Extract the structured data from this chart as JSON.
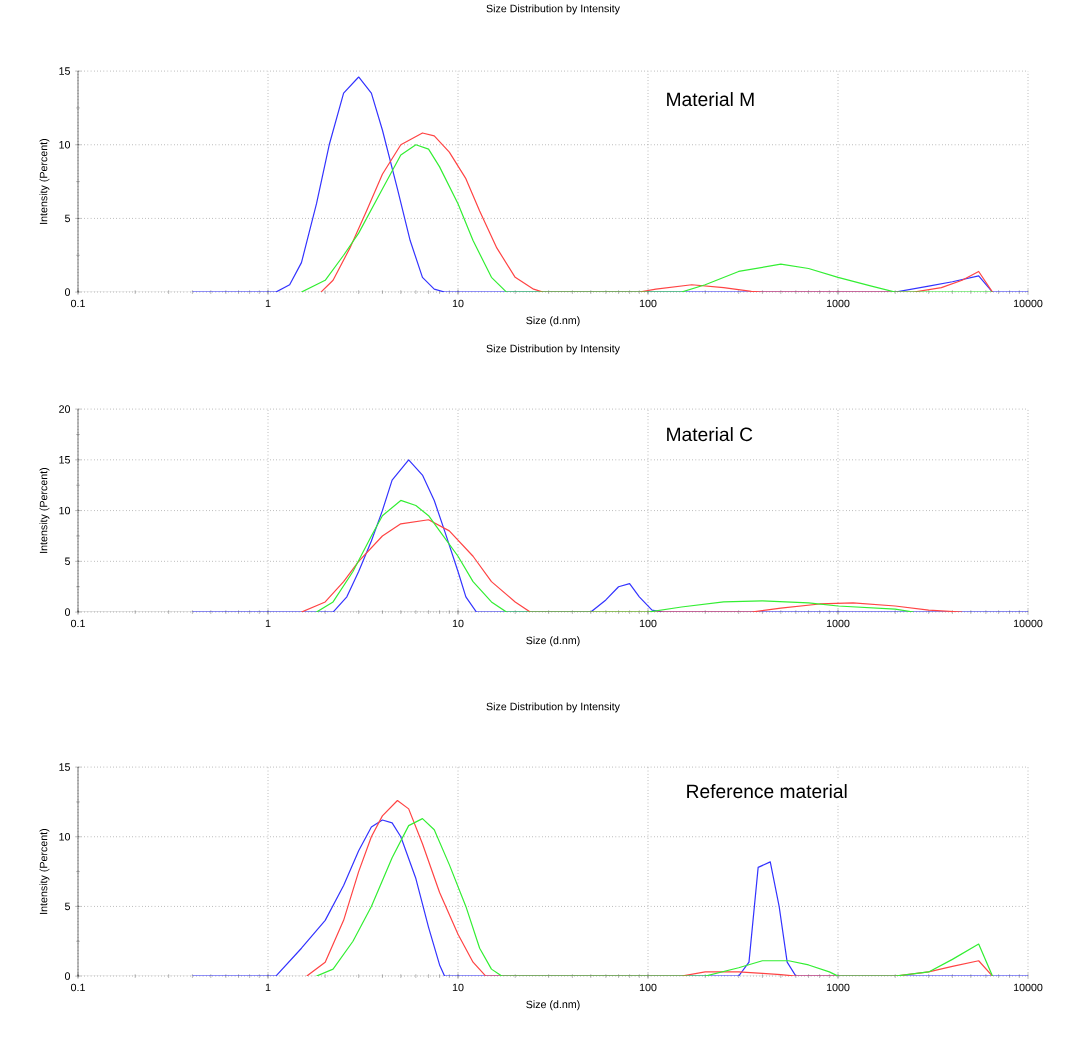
{
  "chart_data": [
    {
      "type": "line",
      "title": "Size Distribution by Intensity",
      "xlabel": "Size (d.nm)",
      "ylabel": "Intensity (Percent)",
      "annotations": [
        "Material M"
      ],
      "log": "x",
      "grid": true,
      "xlim": [
        0.1,
        10000
      ],
      "ylim": [
        0,
        15
      ],
      "xticks": [
        0.1,
        1,
        10,
        100,
        1000,
        10000
      ],
      "yticks": [
        0,
        5,
        10,
        15
      ],
      "series": [
        {
          "color": "#3333ff",
          "x": [
            0.4,
            1.1,
            1.3,
            1.5,
            1.8,
            2.1,
            2.5,
            3.0,
            3.5,
            4.0,
            4.8,
            5.6,
            6.5,
            7.5,
            8.5,
            2000,
            3000,
            4000,
            5500,
            6500,
            10000
          ],
          "values": [
            0,
            0,
            0.5,
            2,
            6,
            10,
            13.5,
            14.6,
            13.5,
            11,
            7,
            3.5,
            1,
            0.2,
            0,
            0,
            0.4,
            0.7,
            1.1,
            0,
            0
          ]
        },
        {
          "color": "#ff4444",
          "x": [
            1.9,
            2.2,
            2.7,
            3.3,
            4,
            5,
            6.5,
            7.5,
            9,
            11,
            13,
            16,
            20,
            25,
            28,
            90,
            110,
            170,
            250,
            350,
            400,
            2500,
            3500,
            4500,
            5500,
            6500
          ],
          "values": [
            0,
            0.8,
            3,
            5.5,
            8,
            10,
            10.8,
            10.6,
            9.5,
            7.7,
            5.5,
            3,
            1,
            0.2,
            0,
            0,
            0.2,
            0.5,
            0.3,
            0.05,
            0,
            0,
            0.3,
            0.8,
            1.4,
            0
          ]
        },
        {
          "color": "#33ee33",
          "x": [
            1.5,
            2,
            2.5,
            3,
            4,
            5,
            6,
            7,
            8,
            10,
            12,
            15,
            18,
            150,
            200,
            300,
            500,
            700,
            1000,
            1500,
            2000,
            6500
          ],
          "values": [
            0,
            0.8,
            2.5,
            4,
            7,
            9.3,
            10,
            9.7,
            8.5,
            6,
            3.5,
            1,
            0,
            0,
            0.5,
            1.4,
            1.9,
            1.6,
            1,
            0.4,
            0,
            0
          ]
        }
      ]
    },
    {
      "type": "line",
      "title": "Size Distribution by Intensity",
      "xlabel": "Size (d.nm)",
      "ylabel": "Intensity (Percent)",
      "annotations": [
        "Material C"
      ],
      "log": "x",
      "grid": true,
      "xlim": [
        0.1,
        10000
      ],
      "ylim": [
        0,
        20
      ],
      "xticks": [
        0.1,
        1,
        10,
        100,
        1000,
        10000
      ],
      "yticks": [
        0,
        5,
        10,
        15,
        20
      ],
      "series": [
        {
          "color": "#3333ff",
          "x": [
            0.4,
            2.2,
            2.6,
            3,
            3.5,
            4,
            4.5,
            5.5,
            6.5,
            7.5,
            8.5,
            10,
            11,
            12.5,
            50,
            60,
            70,
            80,
            90,
            105,
            120,
            10000
          ],
          "values": [
            0,
            0,
            1.5,
            4,
            7,
            10,
            13,
            15,
            13.5,
            11,
            8,
            4,
            1.5,
            0,
            0,
            1.2,
            2.5,
            2.8,
            1.5,
            0.2,
            0,
            0
          ]
        },
        {
          "color": "#ff4444",
          "x": [
            1.5,
            2,
            2.5,
            3,
            4,
            5,
            7,
            9,
            12,
            15,
            20,
            24,
            350,
            500,
            800,
            1200,
            2000,
            3000,
            4500
          ],
          "values": [
            0,
            1,
            3,
            5,
            7.5,
            8.7,
            9.1,
            8,
            5.5,
            3,
            1,
            0,
            0,
            0.4,
            0.8,
            0.9,
            0.6,
            0.2,
            0
          ]
        },
        {
          "color": "#33ee33",
          "x": [
            1.8,
            2.2,
            2.8,
            3.5,
            4,
            5,
            6,
            7,
            8,
            10,
            12,
            15,
            18,
            100,
            150,
            250,
            400,
            700,
            1000,
            2000,
            2500
          ],
          "values": [
            0,
            1,
            4,
            7.5,
            9.5,
            11,
            10.5,
            9.5,
            8,
            5.5,
            3,
            1,
            0,
            0,
            0.5,
            1,
            1.1,
            0.9,
            0.6,
            0.3,
            0
          ]
        }
      ]
    },
    {
      "type": "line",
      "title": "Size Distribution by Intensity",
      "xlabel": "Size (d.nm)",
      "ylabel": "Intensity (Percent)",
      "annotations": [
        "Reference material"
      ],
      "log": "x",
      "grid": true,
      "xlim": [
        0.1,
        10000
      ],
      "ylim": [
        0,
        15
      ],
      "xticks": [
        0.1,
        1,
        10,
        100,
        1000,
        10000
      ],
      "yticks": [
        0,
        5,
        10,
        15
      ],
      "series": [
        {
          "color": "#3333ff",
          "x": [
            0.4,
            1.1,
            1.5,
            2,
            2.5,
            3,
            3.5,
            4,
            4.5,
            5,
            6,
            7,
            8,
            8.5,
            300,
            340,
            380,
            440,
            490,
            540,
            600,
            10000
          ],
          "values": [
            0,
            0,
            2,
            4,
            6.5,
            9,
            10.7,
            11.2,
            11,
            10,
            7,
            3.5,
            0.8,
            0,
            0,
            1,
            7.8,
            8.2,
            5,
            1,
            0,
            0
          ]
        },
        {
          "color": "#ff4444",
          "x": [
            1.6,
            2,
            2.5,
            3,
            3.5,
            4,
            4.8,
            5.5,
            6.5,
            8,
            10,
            12,
            14,
            150,
            200,
            300,
            400,
            500,
            600,
            2000,
            3000,
            4000,
            5500,
            6500
          ],
          "values": [
            0,
            1,
            4,
            7.5,
            10,
            11.5,
            12.6,
            12,
            9.5,
            6,
            3,
            1,
            0,
            0,
            0.3,
            0.3,
            0.2,
            0.1,
            0,
            0,
            0.3,
            0.7,
            1.1,
            0
          ]
        },
        {
          "color": "#33ee33",
          "x": [
            1.8,
            2.2,
            2.8,
            3.5,
            4.5,
            5.5,
            6.5,
            7.5,
            9,
            11,
            13,
            15,
            17,
            200,
            300,
            400,
            550,
            700,
            900,
            1000,
            2000,
            3000,
            4000,
            5500,
            6500
          ],
          "values": [
            0,
            0.5,
            2.5,
            5,
            8.5,
            10.8,
            11.3,
            10.5,
            8,
            5,
            2,
            0.5,
            0,
            0,
            0.6,
            1.1,
            1.1,
            0.8,
            0.3,
            0,
            0,
            0.3,
            1.2,
            2.3,
            0
          ]
        }
      ]
    }
  ]
}
